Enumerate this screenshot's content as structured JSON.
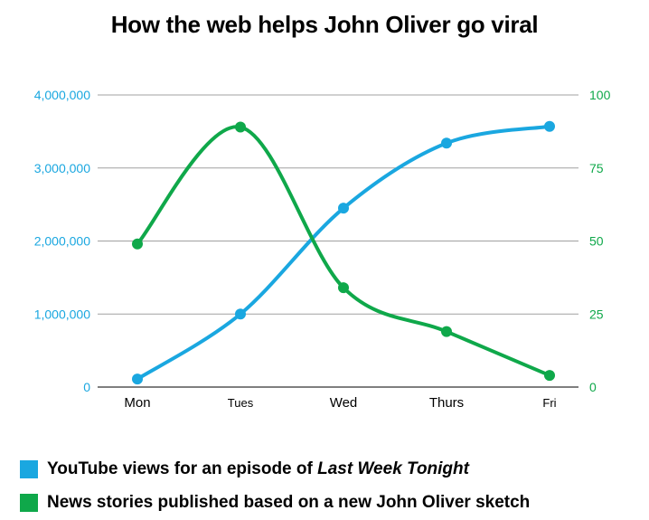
{
  "chart_data": {
    "type": "line",
    "title": "How the web helps John Oliver go viral",
    "categories": [
      "Mon",
      "Tues",
      "Wed",
      "Thurs",
      "Fri"
    ],
    "y_left": {
      "ticks": [
        "0",
        "1,000,000",
        "2,000,000",
        "3,000,000",
        "4,000,000"
      ],
      "ylim": [
        0,
        4000000
      ],
      "color": "#1aa7e0"
    },
    "y_right": {
      "ticks": [
        "0",
        "25",
        "50",
        "75",
        "100"
      ],
      "ylim": [
        0,
        100
      ],
      "color": "#0fa84a"
    },
    "grid": true,
    "series": [
      {
        "name": "YouTube views for an episode of Last Week Tonight",
        "name_plain": "YouTube views for an episode of ",
        "name_italic": "Last Week Tonight",
        "axis": "left",
        "color": "#1aa7e0",
        "values": [
          110000,
          1000000,
          2450000,
          3340000,
          3570000
        ]
      },
      {
        "name": "News stories published based on a new John Oliver sketch",
        "axis": "right",
        "color": "#0fa84a",
        "values": [
          49,
          89,
          34,
          19,
          4
        ]
      }
    ],
    "legend_position": "bottom-left"
  }
}
